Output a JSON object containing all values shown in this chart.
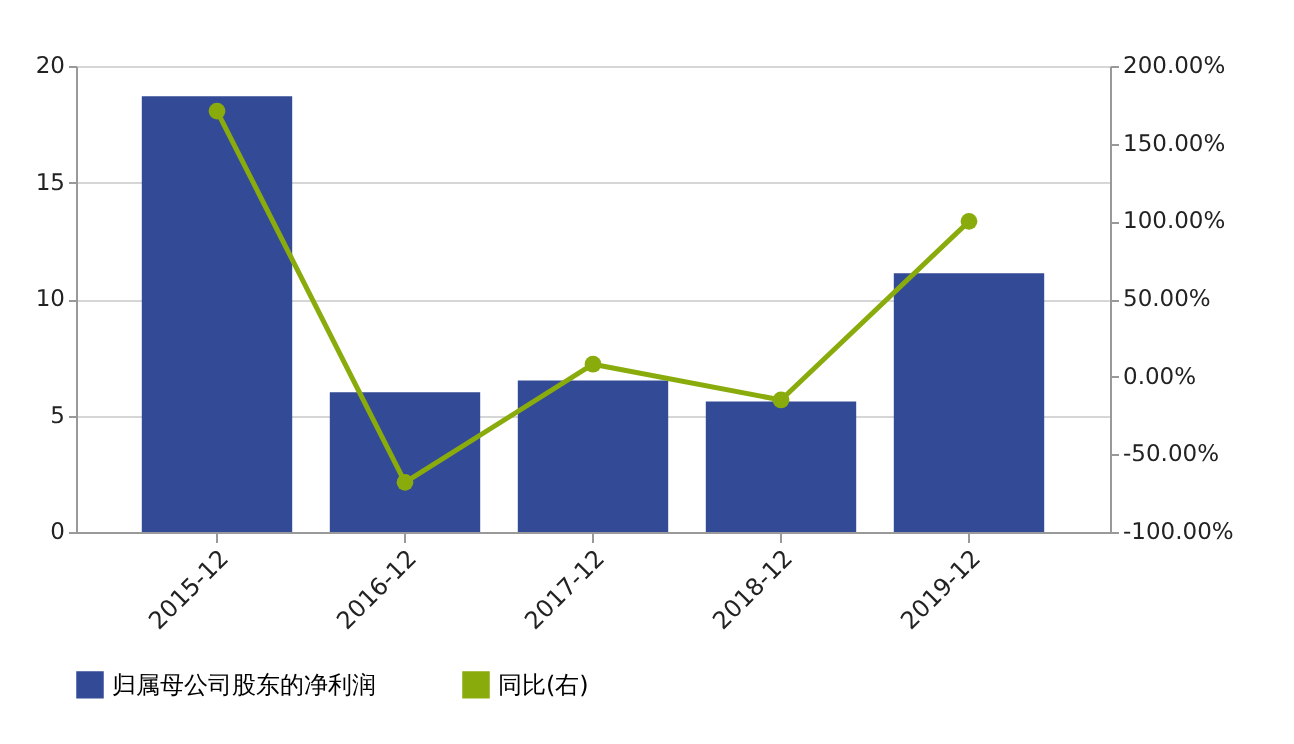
{
  "chart_data": {
    "type": "bar",
    "categories": [
      "2015-12",
      "2016-12",
      "2017-12",
      "2018-12",
      "2019-12"
    ],
    "series": [
      {
        "name": "归属母公司股东的净利润",
        "color": "#334a96",
        "values": [
          18.7,
          6.0,
          6.5,
          5.6,
          11.1
        ]
      },
      {
        "name": "同比(右)",
        "type": "line",
        "axis": "y2",
        "color": "#8aab0c",
        "marker": "circle",
        "values": [
          171,
          -68,
          8,
          -15,
          100
        ]
      }
    ],
    "ylim": [
      0,
      20
    ],
    "yticks": [
      0,
      5,
      10,
      15,
      20
    ],
    "y2lim": [
      -100,
      200
    ],
    "y2ticks": [
      {
        "value": -100,
        "label": "-100.00%"
      },
      {
        "value": -50,
        "label": "-50.00%"
      },
      {
        "value": 0,
        "label": "0.00%"
      },
      {
        "value": 50,
        "label": "50.00%"
      },
      {
        "value": 100,
        "label": "100.00%"
      },
      {
        "value": 150,
        "label": "150.00%"
      },
      {
        "value": 200,
        "label": "200.00%"
      }
    ],
    "grid": "y",
    "legend": "bottom"
  }
}
